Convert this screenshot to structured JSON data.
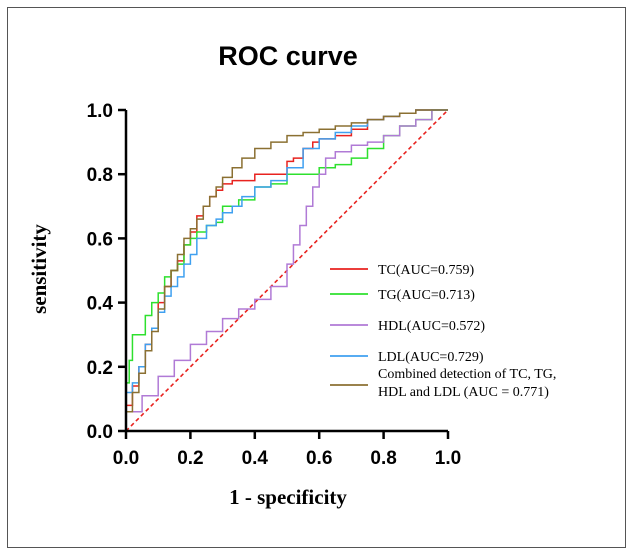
{
  "chart_data": {
    "type": "line",
    "title": "ROC curve",
    "xlabel": "1 - specificity",
    "ylabel": "sensitivity",
    "xlim": [
      0,
      1
    ],
    "ylim": [
      0,
      1
    ],
    "xticks": [
      "0.0",
      "0.2",
      "0.4",
      "0.6",
      "0.8",
      "1.0"
    ],
    "yticks": [
      "0.0",
      "0.2",
      "0.4",
      "0.6",
      "0.8",
      "1.0"
    ],
    "grid": false,
    "legend_position": "right",
    "series": [
      {
        "name": "TC(AUC=0.759)",
        "color": "#e8231f",
        "x": [
          0,
          0.02,
          0.04,
          0.06,
          0.08,
          0.1,
          0.12,
          0.14,
          0.16,
          0.18,
          0.2,
          0.22,
          0.24,
          0.26,
          0.28,
          0.3,
          0.33,
          0.36,
          0.4,
          0.45,
          0.5,
          0.52,
          0.55,
          0.58,
          0.6,
          0.65,
          0.7,
          0.75,
          0.8,
          0.85,
          0.9,
          0.95,
          1.0
        ],
        "y": [
          0,
          0.08,
          0.14,
          0.2,
          0.27,
          0.32,
          0.4,
          0.45,
          0.5,
          0.53,
          0.58,
          0.62,
          0.67,
          0.7,
          0.73,
          0.75,
          0.77,
          0.78,
          0.78,
          0.8,
          0.8,
          0.84,
          0.85,
          0.88,
          0.9,
          0.91,
          0.92,
          0.94,
          0.97,
          0.98,
          0.99,
          1.0,
          1.0
        ]
      },
      {
        "name": "TG(AUC=0.713)",
        "color": "#2ee02e",
        "x": [
          0,
          0.01,
          0.02,
          0.04,
          0.06,
          0.08,
          0.1,
          0.12,
          0.14,
          0.16,
          0.18,
          0.2,
          0.22,
          0.25,
          0.28,
          0.3,
          0.35,
          0.4,
          0.45,
          0.5,
          0.55,
          0.6,
          0.65,
          0.7,
          0.75,
          0.8,
          0.85,
          0.9,
          0.95,
          1.0
        ],
        "y": [
          0,
          0.15,
          0.22,
          0.3,
          0.3,
          0.36,
          0.4,
          0.43,
          0.48,
          0.5,
          0.52,
          0.58,
          0.6,
          0.62,
          0.64,
          0.65,
          0.7,
          0.72,
          0.76,
          0.77,
          0.8,
          0.8,
          0.82,
          0.83,
          0.85,
          0.88,
          0.92,
          0.95,
          0.97,
          1.0
        ]
      },
      {
        "name": "HDL(AUC=0.572)",
        "color": "#b07ad6",
        "x": [
          0,
          0.05,
          0.1,
          0.15,
          0.2,
          0.25,
          0.3,
          0.35,
          0.4,
          0.45,
          0.5,
          0.52,
          0.54,
          0.56,
          0.58,
          0.6,
          0.62,
          0.65,
          0.7,
          0.75,
          0.8,
          0.85,
          0.9,
          0.95,
          1.0
        ],
        "y": [
          0,
          0.06,
          0.11,
          0.17,
          0.22,
          0.27,
          0.31,
          0.35,
          0.38,
          0.41,
          0.45,
          0.52,
          0.58,
          0.64,
          0.7,
          0.76,
          0.8,
          0.85,
          0.87,
          0.89,
          0.9,
          0.92,
          0.95,
          0.97,
          1.0
        ]
      },
      {
        "name": "LDL(AUC=0.729)",
        "color": "#3fa0f0",
        "x": [
          0,
          0.02,
          0.04,
          0.06,
          0.08,
          0.1,
          0.12,
          0.14,
          0.16,
          0.18,
          0.2,
          0.22,
          0.25,
          0.28,
          0.3,
          0.33,
          0.36,
          0.4,
          0.45,
          0.5,
          0.55,
          0.6,
          0.65,
          0.7,
          0.75,
          0.8,
          0.85,
          0.9,
          0.95,
          1.0
        ],
        "y": [
          0,
          0.12,
          0.15,
          0.2,
          0.27,
          0.32,
          0.37,
          0.42,
          0.45,
          0.48,
          0.52,
          0.55,
          0.6,
          0.64,
          0.66,
          0.68,
          0.7,
          0.73,
          0.76,
          0.78,
          0.82,
          0.88,
          0.91,
          0.93,
          0.95,
          0.97,
          0.98,
          0.99,
          1.0,
          1.0
        ]
      },
      {
        "name": "Combined detection of TC, TG, HDL and LDL (AUC = 0.771)",
        "name_lines": [
          "Combined detection of TC, TG,",
          "HDL and LDL (AUC = 0.771)"
        ],
        "color": "#8b7032",
        "x": [
          0,
          0.02,
          0.04,
          0.06,
          0.08,
          0.1,
          0.12,
          0.14,
          0.16,
          0.18,
          0.2,
          0.22,
          0.24,
          0.26,
          0.28,
          0.3,
          0.33,
          0.36,
          0.4,
          0.45,
          0.5,
          0.55,
          0.6,
          0.65,
          0.7,
          0.75,
          0.8,
          0.85,
          0.9,
          0.95,
          1.0
        ],
        "y": [
          0,
          0.06,
          0.12,
          0.18,
          0.25,
          0.31,
          0.38,
          0.45,
          0.5,
          0.55,
          0.6,
          0.63,
          0.66,
          0.7,
          0.73,
          0.76,
          0.79,
          0.82,
          0.85,
          0.88,
          0.9,
          0.92,
          0.93,
          0.94,
          0.95,
          0.96,
          0.97,
          0.98,
          0.99,
          1.0,
          1.0
        ]
      }
    ],
    "reference_line": {
      "color": "#e8231f",
      "style": "dashed",
      "from": [
        0,
        0
      ],
      "to": [
        1,
        1
      ]
    }
  }
}
